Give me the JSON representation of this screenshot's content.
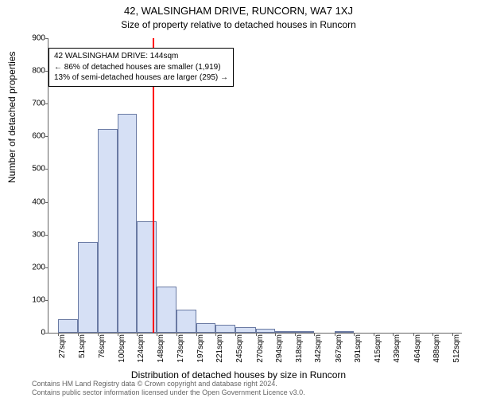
{
  "title_main": "42, WALSINGHAM DRIVE, RUNCORN, WA7 1XJ",
  "title_sub": "Size of property relative to detached houses in Runcorn",
  "y_label": "Number of detached properties",
  "x_label": "Distribution of detached houses by size in Runcorn",
  "footer_line1": "Contains HM Land Registry data © Crown copyright and database right 2024.",
  "footer_line2": "Contains public sector information licensed under the Open Government Licence v3.0.",
  "chart": {
    "type": "histogram",
    "ylim": [
      0,
      900
    ],
    "ytick_step": 100,
    "yticks": [
      0,
      100,
      200,
      300,
      400,
      500,
      600,
      700,
      800,
      900
    ],
    "xticks_sqm": [
      27,
      51,
      76,
      100,
      124,
      148,
      173,
      197,
      221,
      245,
      270,
      294,
      318,
      342,
      367,
      391,
      415,
      439,
      464,
      488,
      512
    ],
    "xtick_suffix": "sqm",
    "x_range": [
      15,
      524
    ],
    "bars": [
      {
        "x0": 27,
        "x1": 51,
        "value": 42
      },
      {
        "x0": 51,
        "x1": 76,
        "value": 278
      },
      {
        "x0": 76,
        "x1": 100,
        "value": 622
      },
      {
        "x0": 100,
        "x1": 124,
        "value": 670
      },
      {
        "x0": 124,
        "x1": 148,
        "value": 340
      },
      {
        "x0": 148,
        "x1": 173,
        "value": 142
      },
      {
        "x0": 173,
        "x1": 197,
        "value": 70
      },
      {
        "x0": 197,
        "x1": 221,
        "value": 30
      },
      {
        "x0": 221,
        "x1": 245,
        "value": 24
      },
      {
        "x0": 245,
        "x1": 270,
        "value": 16
      },
      {
        "x0": 270,
        "x1": 294,
        "value": 12
      },
      {
        "x0": 294,
        "x1": 318,
        "value": 6
      },
      {
        "x0": 318,
        "x1": 342,
        "value": 1
      },
      {
        "x0": 342,
        "x1": 367,
        "value": 0
      },
      {
        "x0": 367,
        "x1": 391,
        "value": 4
      },
      {
        "x0": 391,
        "x1": 415,
        "value": 0
      },
      {
        "x0": 415,
        "x1": 439,
        "value": 0
      },
      {
        "x0": 439,
        "x1": 464,
        "value": 0
      },
      {
        "x0": 464,
        "x1": 488,
        "value": 0
      },
      {
        "x0": 488,
        "x1": 512,
        "value": 0
      }
    ],
    "bar_fill": "#d6e0f5",
    "bar_stroke": "#6a7aa3",
    "background": "#ffffff",
    "axis_color": "#666666",
    "tick_fontsize": 10,
    "label_fontsize": 12,
    "title_fontsize": 13,
    "reference_line": {
      "x_sqm": 144,
      "color": "#ff0000",
      "width": 2
    },
    "annotation": {
      "lines": [
        "42 WALSINGHAM DRIVE: 144sqm",
        "← 86% of detached houses are smaller (1,919)",
        "13% of semi-detached houses are larger (295) →"
      ],
      "border_color": "#000000",
      "background": "#ffffff",
      "fontsize": 10,
      "pos_sqm": 15,
      "pos_yval": 870
    }
  }
}
